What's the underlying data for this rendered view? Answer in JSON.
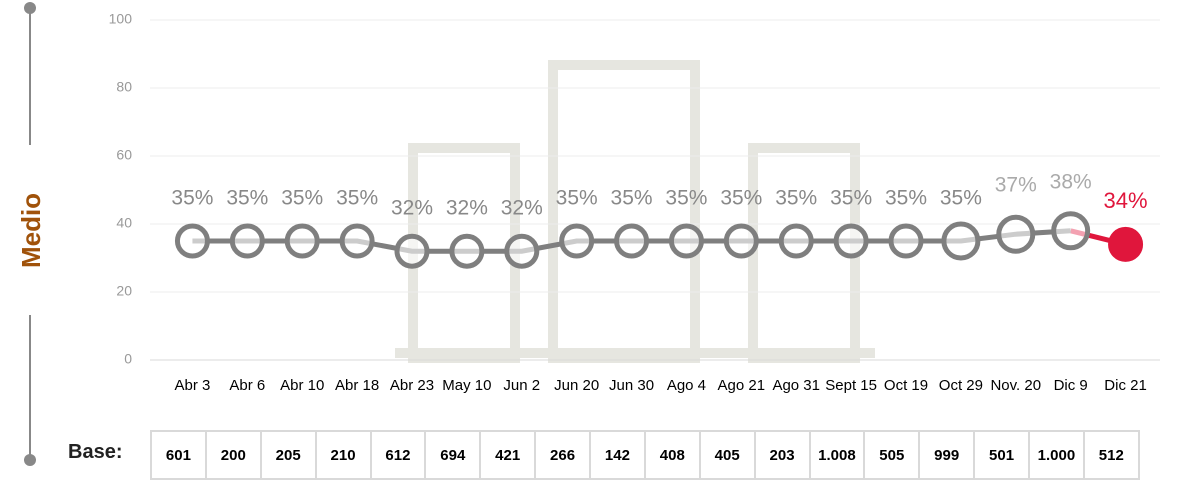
{
  "chart_data": {
    "type": "line",
    "side_label": "Medio",
    "categories": [
      "Abr 3",
      "Abr 6",
      "Abr 10",
      "Abr 18",
      "Abr 23",
      "May 10",
      "Jun 2",
      "Jun 20",
      "Jun 30",
      "Ago 4",
      "Ago 21",
      "Ago 31",
      "Sept 15",
      "Oct 19",
      "Oct 29",
      "Nov. 20",
      "Dic 9",
      "Dic 21"
    ],
    "values": [
      35,
      35,
      35,
      35,
      32,
      32,
      32,
      35,
      35,
      35,
      35,
      35,
      35,
      35,
      35,
      37,
      38,
      34
    ],
    "value_labels": [
      "35%",
      "35%",
      "35%",
      "35%",
      "32%",
      "32%",
      "32%",
      "35%",
      "35%",
      "35%",
      "35%",
      "35%",
      "35%",
      "35%",
      "35%",
      "37%",
      "38%",
      "34%"
    ],
    "color": "#7f7f7f",
    "highlight_color": "#e0163c",
    "ylim": [
      0,
      100
    ],
    "yticks": [
      0,
      20,
      40,
      60,
      80,
      100
    ],
    "grid": true
  },
  "base": {
    "label": "Base:",
    "values": [
      "601",
      "200",
      "205",
      "210",
      "612",
      "694",
      "421",
      "266",
      "142",
      "408",
      "405",
      "203",
      "1.008",
      "505",
      "999",
      "501",
      "1.000",
      "512"
    ]
  }
}
